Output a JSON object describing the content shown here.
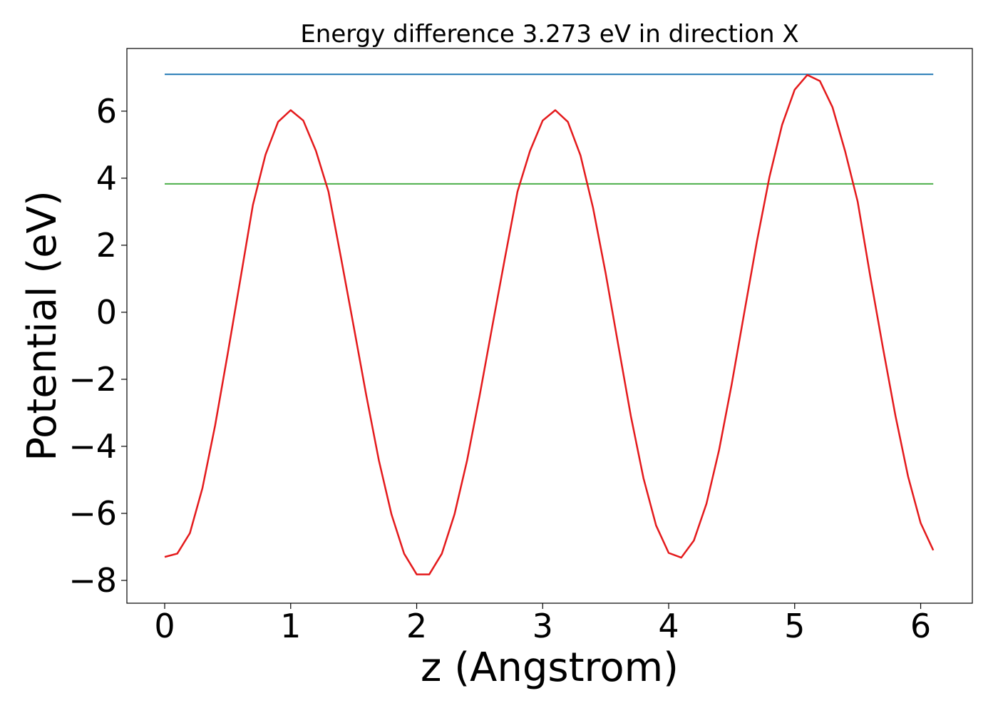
{
  "chart_data": {
    "type": "line",
    "title": "Energy difference 3.273 eV in direction X",
    "xlabel": "z (Angstrom)",
    "ylabel": "Potential (eV)",
    "x": [
      0,
      0.1,
      0.2,
      0.3,
      0.4,
      0.5,
      0.6,
      0.7,
      0.8,
      0.9,
      1.0,
      1.1,
      1.2,
      1.3,
      1.4,
      1.5,
      1.6,
      1.7,
      1.8,
      1.9,
      2.0,
      2.1,
      2.2,
      2.3,
      2.4,
      2.5,
      2.6,
      2.7,
      2.8,
      2.9,
      3.0,
      3.1,
      3.2,
      3.3,
      3.4,
      3.5,
      3.6,
      3.7,
      3.8,
      3.9,
      4.0,
      4.1,
      4.2,
      4.3,
      4.4,
      4.5,
      4.6,
      4.7,
      4.8,
      4.9,
      5.0,
      5.1,
      5.2,
      5.3,
      5.4,
      5.5,
      5.6,
      5.7,
      5.8,
      5.9,
      6.0,
      6.1
    ],
    "series": [
      {
        "color": "#e41a1c",
        "values": [
          -7.3,
          -7.2,
          -6.59,
          -5.24,
          -3.38,
          -1.24,
          0.97,
          3.2,
          4.7,
          5.68,
          6.03,
          5.72,
          4.82,
          3.6,
          1.61,
          -0.42,
          -2.48,
          -4.42,
          -6.03,
          -7.2,
          -7.82,
          -7.82,
          -7.2,
          -6.03,
          -4.42,
          -2.48,
          -0.42,
          1.61,
          3.6,
          4.82,
          5.72,
          6.03,
          5.68,
          4.68,
          3.11,
          1.16,
          -0.98,
          -3.1,
          -4.95,
          -6.36,
          -7.18,
          -7.32,
          -6.81,
          -5.71,
          -4.11,
          -2.15,
          -0.01,
          2.11,
          4.04,
          5.59,
          6.64,
          7.08,
          6.9,
          6.12,
          4.81,
          3.3,
          1.07,
          -1.05,
          -3.09,
          -4.9,
          -6.29,
          -7.1
        ]
      }
    ],
    "hlines": [
      {
        "color": "#1f77b4",
        "value": 7.1
      },
      {
        "color": "#4daf4a",
        "value": 3.83
      }
    ],
    "xlim": [
      -0.3,
      6.41
    ],
    "ylim": [
      -8.68,
      7.87
    ],
    "xticks": [
      0,
      1,
      2,
      3,
      4,
      5,
      6
    ],
    "yticks": [
      {
        "value": -8,
        "label": "−8"
      },
      {
        "value": -6,
        "label": "−6"
      },
      {
        "value": -4,
        "label": "−4"
      },
      {
        "value": -2,
        "label": "−2"
      },
      0,
      2,
      4,
      6
    ],
    "grid": false
  }
}
